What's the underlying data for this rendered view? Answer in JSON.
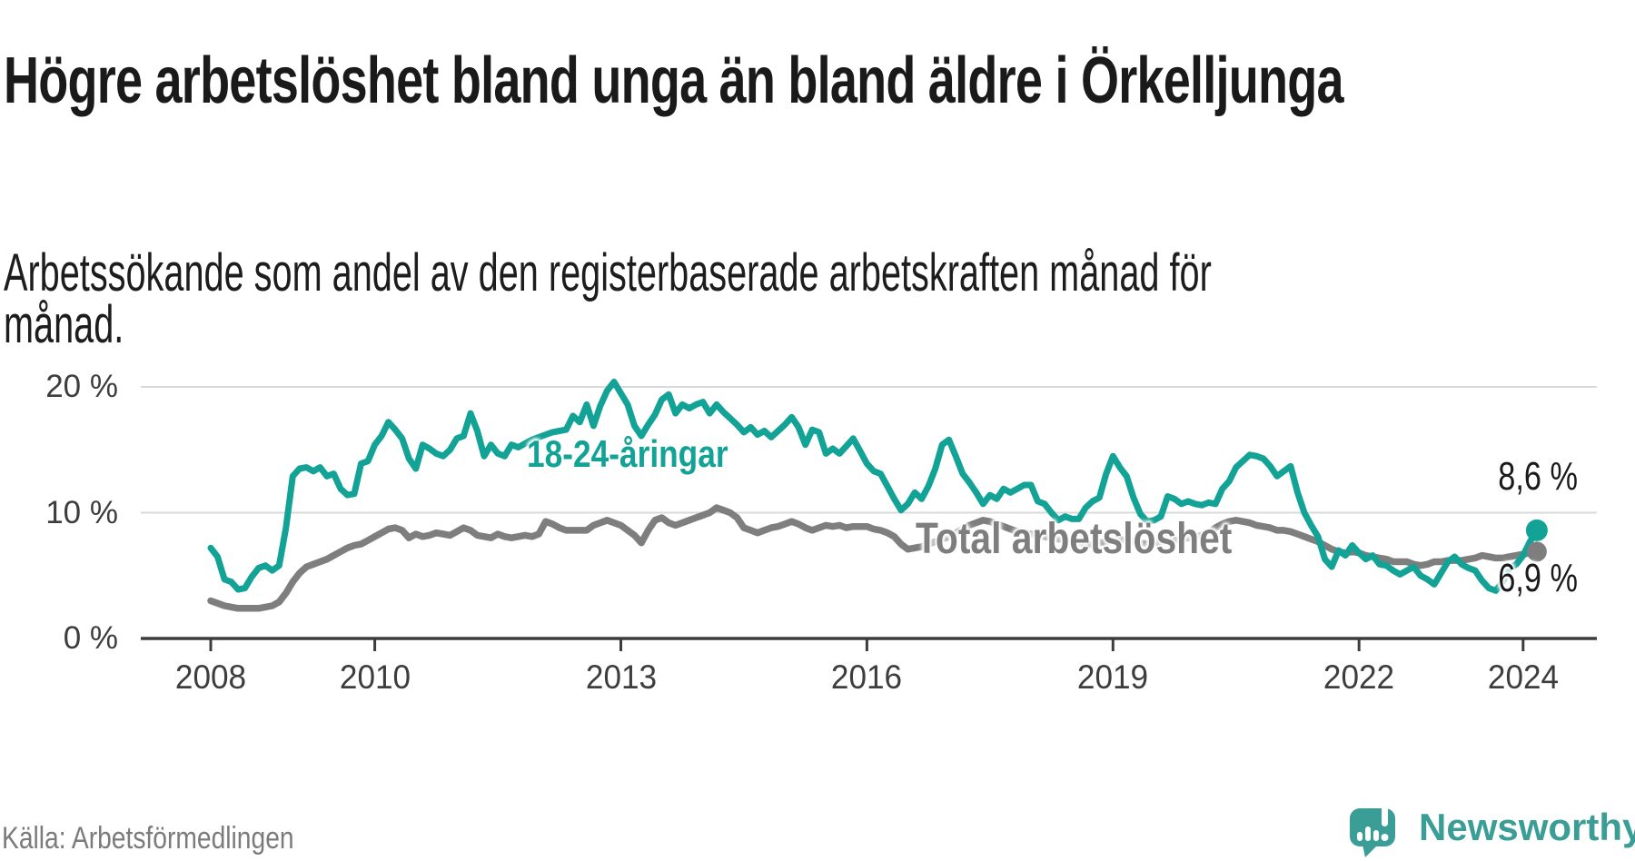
{
  "title": "Högre arbetslöshet bland unga än bland äldre i Örkelljunga",
  "subtitle": "Arbetssökande som andel av den registerbaserade arbetskraften månad för månad.",
  "source": "Källa: Arbetsförmedlingen",
  "branding": {
    "name": "Newsworthy",
    "icon": "newsworthy-speech-bubble-bar-chart-icon",
    "color": "#3a9e96"
  },
  "colors": {
    "young": "#12a296",
    "total": "#7e7e7e",
    "grid": "#d9d9d9",
    "axis_line": "#3d3d3d",
    "axis_text": "#3d3d3d",
    "title_text": "#1a1a1a",
    "end_label_text": "#1a1a1a",
    "source_text": "#7b7b7b",
    "background": "#ffffff"
  },
  "chart_data": {
    "type": "line",
    "x_unit": "month",
    "x_start_year": 2008,
    "x_end_label": "2024",
    "xticks": [
      2008,
      2010,
      2013,
      2016,
      2019,
      2022,
      2024
    ],
    "yticks": [
      {
        "label": "0 %",
        "value": 0
      },
      {
        "label": "10 %",
        "value": 10
      },
      {
        "label": "20 %",
        "value": 20
      }
    ],
    "ylim": [
      0,
      22
    ],
    "grid": "horizontal",
    "legend_position": "inline-labels",
    "series": [
      {
        "id": "young",
        "name": "18-24-åringar",
        "color": "#12a296",
        "end_label": "8,6 %",
        "end_value": 8.6,
        "width": 7,
        "dot_r": 12,
        "values": [
          7.2,
          6.5,
          4.7,
          4.5,
          3.9,
          4.0,
          4.9,
          5.6,
          5.8,
          5.4,
          5.8,
          8.8,
          12.9,
          13.5,
          13.6,
          13.3,
          13.6,
          12.9,
          13.1,
          11.9,
          11.4,
          11.5,
          13.9,
          14.1,
          15.4,
          16.1,
          17.2,
          16.6,
          15.9,
          14.3,
          13.5,
          15.4,
          15.1,
          14.7,
          14.5,
          15.0,
          15.9,
          16.1,
          17.9,
          16.5,
          14.5,
          15.4,
          14.7,
          14.5,
          15.4,
          15.2,
          15.5,
          15.8,
          16.0,
          16.2,
          16.4,
          16.5,
          16.6,
          17.7,
          17.2,
          18.6,
          16.9,
          18.5,
          19.7,
          20.4,
          19.5,
          18.6,
          16.9,
          16.1,
          17.0,
          17.8,
          19.0,
          19.4,
          17.9,
          18.6,
          18.3,
          18.6,
          18.8,
          17.9,
          18.6,
          18.0,
          17.5,
          17.0,
          16.4,
          16.8,
          16.2,
          16.5,
          16.0,
          16.5,
          17.0,
          17.6,
          16.8,
          15.4,
          16.6,
          16.4,
          14.7,
          15.1,
          14.7,
          15.3,
          15.9,
          14.9,
          13.9,
          13.3,
          13.1,
          12.1,
          11.1,
          10.2,
          10.7,
          11.6,
          11.1,
          12.1,
          13.5,
          15.4,
          15.8,
          14.5,
          13.1,
          12.4,
          11.6,
          10.7,
          11.4,
          11.1,
          11.9,
          11.6,
          11.9,
          12.2,
          12.2,
          10.9,
          10.7,
          10.0,
          9.4,
          9.7,
          9.5,
          9.5,
          10.4,
          10.9,
          11.2,
          13.1,
          14.5,
          13.6,
          12.9,
          11.2,
          9.9,
          9.3,
          9.4,
          9.7,
          11.3,
          11.1,
          10.7,
          10.9,
          10.7,
          10.6,
          10.8,
          10.7,
          11.9,
          12.5,
          13.6,
          14.1,
          14.6,
          14.5,
          14.3,
          13.7,
          12.9,
          13.3,
          13.7,
          11.6,
          10.0,
          9.0,
          8.1,
          6.3,
          5.7,
          7.0,
          6.6,
          7.4,
          6.8,
          6.3,
          6.6,
          5.9,
          5.8,
          5.4,
          5.1,
          5.4,
          5.7,
          5.0,
          4.7,
          4.3,
          5.2,
          6.1,
          6.5,
          5.9,
          5.6,
          5.4,
          4.6,
          4.0,
          3.8,
          4.5,
          5.6,
          5.9,
          6.6,
          7.7,
          8.6
        ]
      },
      {
        "id": "total",
        "name": "Total arbetslöshet",
        "color": "#7e7e7e",
        "end_label": "6,9 %",
        "end_value": 6.9,
        "width": 7.5,
        "dot_r": 11,
        "values": [
          3.0,
          2.8,
          2.6,
          2.5,
          2.4,
          2.4,
          2.4,
          2.4,
          2.5,
          2.6,
          2.9,
          3.6,
          4.5,
          5.2,
          5.7,
          5.9,
          6.1,
          6.3,
          6.6,
          6.9,
          7.2,
          7.4,
          7.5,
          7.8,
          8.1,
          8.4,
          8.7,
          8.8,
          8.6,
          8.0,
          8.3,
          8.1,
          8.2,
          8.4,
          8.3,
          8.2,
          8.5,
          8.8,
          8.6,
          8.2,
          8.1,
          8.0,
          8.3,
          8.1,
          8.0,
          8.1,
          8.2,
          8.1,
          8.3,
          9.3,
          9.1,
          8.8,
          8.6,
          8.6,
          8.6,
          8.6,
          9.0,
          9.2,
          9.4,
          9.2,
          9.0,
          8.6,
          8.2,
          7.6,
          8.6,
          9.4,
          9.6,
          9.2,
          9.0,
          9.2,
          9.4,
          9.6,
          9.8,
          10.0,
          10.4,
          10.2,
          10.0,
          9.6,
          8.8,
          8.6,
          8.4,
          8.6,
          8.8,
          8.9,
          9.1,
          9.3,
          9.1,
          8.8,
          8.6,
          8.8,
          9.0,
          8.9,
          9.0,
          8.8,
          8.9,
          8.9,
          8.9,
          8.7,
          8.6,
          8.4,
          8.1,
          7.5,
          7.1,
          7.2,
          7.3,
          7.5,
          7.7,
          7.9,
          8.1,
          8.4,
          8.7,
          9.0,
          9.2,
          9.4,
          9.3,
          9.1,
          8.9,
          8.7,
          8.5,
          8.4,
          8.3,
          8.2,
          8.1,
          8.0,
          7.9,
          7.8,
          7.7,
          7.6,
          7.5,
          7.5,
          7.6,
          7.7,
          7.8,
          7.9,
          7.8,
          7.7,
          7.6,
          7.5,
          7.6,
          7.7,
          7.8,
          7.8,
          7.9,
          8.0,
          8.1,
          8.2,
          8.4,
          8.8,
          9.1,
          9.3,
          9.4,
          9.3,
          9.2,
          9.0,
          8.9,
          8.8,
          8.6,
          8.6,
          8.5,
          8.3,
          8.1,
          7.9,
          7.7,
          7.4,
          7.1,
          6.9,
          6.8,
          6.9,
          6.8,
          6.6,
          6.5,
          6.4,
          6.3,
          6.1,
          6.1,
          6.1,
          5.9,
          5.8,
          5.9,
          6.1,
          6.1,
          6.2,
          6.2,
          6.2,
          6.3,
          6.4,
          6.6,
          6.5,
          6.4,
          6.4,
          6.5,
          6.6,
          6.7,
          6.8,
          6.9
        ]
      }
    ]
  }
}
